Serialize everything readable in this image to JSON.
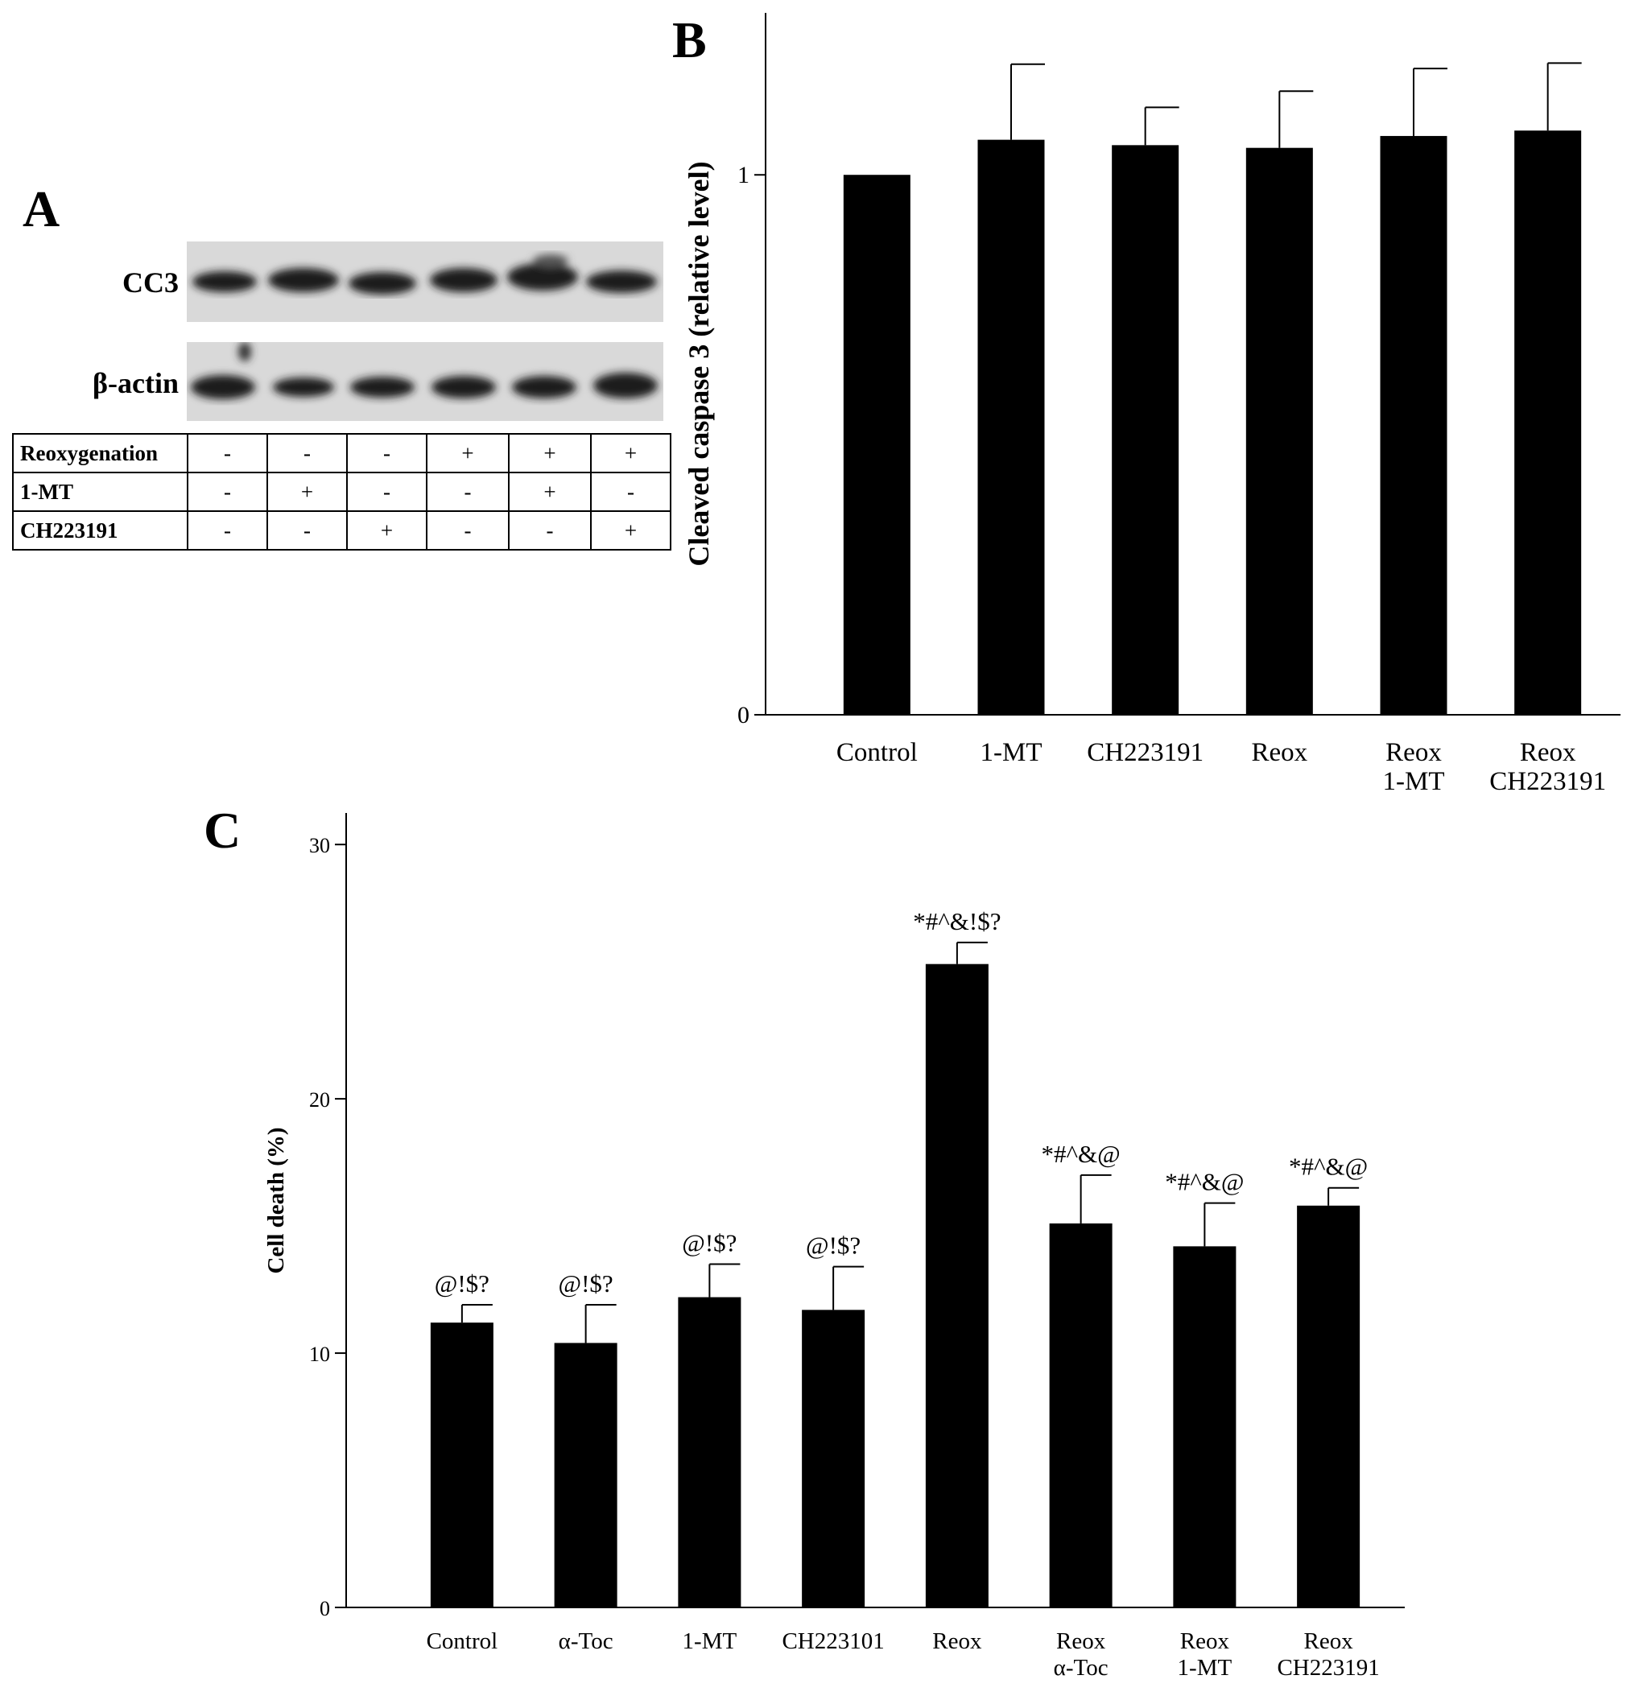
{
  "panel_labels": {
    "a": "A",
    "b": "B",
    "c": "C"
  },
  "panel_a": {
    "blots": [
      {
        "label": "CC3"
      },
      {
        "label": "β-actin"
      }
    ],
    "rows": [
      {
        "label": "Reoxygenation",
        "values": [
          "-",
          "-",
          "-",
          "+",
          "+",
          "+"
        ]
      },
      {
        "label": "1-MT",
        "values": [
          "-",
          "+",
          "-",
          "-",
          "+",
          "-"
        ]
      },
      {
        "label": "CH223191",
        "values": [
          "-",
          "-",
          "+",
          "-",
          "-",
          "+"
        ]
      }
    ]
  },
  "chart_data": [
    {
      "id": "panel_b",
      "type": "bar",
      "title": "",
      "xlabel": "",
      "ylabel": "Cleaved caspase 3 (relative level)",
      "ylim": [
        0,
        1.3
      ],
      "yticks": [
        0,
        1
      ],
      "categories": [
        [
          "Control"
        ],
        [
          "1-MT"
        ],
        [
          "CH223191"
        ],
        [
          "Reox"
        ],
        [
          "Reox",
          "1-MT"
        ],
        [
          "Reox",
          "CH223191"
        ]
      ],
      "values": [
        1.0,
        1.065,
        1.055,
        1.05,
        1.072,
        1.082
      ],
      "errors": [
        0.0,
        0.14,
        0.07,
        0.105,
        0.125,
        0.125
      ],
      "annotations": [
        "",
        "",
        "",
        "",
        "",
        ""
      ],
      "bar_color": "#000000"
    },
    {
      "id": "panel_c",
      "type": "bar",
      "title": "",
      "xlabel": "",
      "ylabel": "Cell death (%)",
      "ylim": [
        0,
        32
      ],
      "yticks": [
        0,
        10,
        20,
        30
      ],
      "categories": [
        [
          "Control"
        ],
        [
          "α-Toc"
        ],
        [
          "1-MT"
        ],
        [
          "CH223101"
        ],
        [
          "Reox"
        ],
        [
          "Reox",
          "α-Toc"
        ],
        [
          "Reox",
          "1-MT"
        ],
        [
          "Reox",
          "CH223191"
        ]
      ],
      "values": [
        11.2,
        10.4,
        12.2,
        11.7,
        25.3,
        15.1,
        14.2,
        15.8
      ],
      "errors": [
        0.7,
        1.5,
        1.3,
        1.7,
        0.85,
        1.9,
        1.7,
        0.7
      ],
      "annotations": [
        "@!$?",
        "@!$?",
        "@!$?",
        "@!$?",
        "*#^&!$?",
        "*#^&@",
        "*#^&@",
        "*#^&@"
      ],
      "bar_color": "#000000"
    }
  ]
}
